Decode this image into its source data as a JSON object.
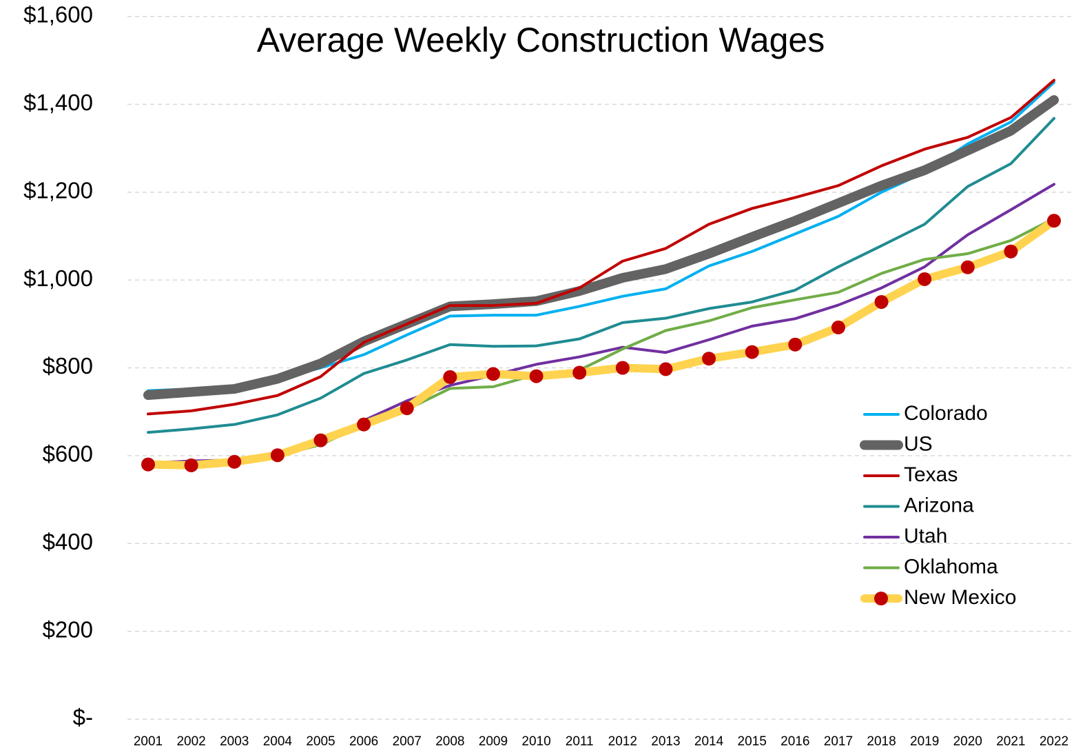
{
  "chart_data": {
    "type": "line",
    "title": "Average Weekly Construction Wages",
    "categories": [
      "2001",
      "2002",
      "2003",
      "2004",
      "2005",
      "2006",
      "2007",
      "2008",
      "2009",
      "2010",
      "2011",
      "2012",
      "2013",
      "2014",
      "2015",
      "2016",
      "2017",
      "2018",
      "2019",
      "2020",
      "2021",
      "2022"
    ],
    "ylim": [
      0,
      1600
    ],
    "yticks": [
      {
        "value": 0,
        "label": "$-"
      },
      {
        "value": 200,
        "label": "$200"
      },
      {
        "value": 400,
        "label": "$400"
      },
      {
        "value": 600,
        "label": "$600"
      },
      {
        "value": 800,
        "label": "$800"
      },
      {
        "value": 1000,
        "label": "$1,000"
      },
      {
        "value": 1200,
        "label": "$1,200"
      },
      {
        "value": 1400,
        "label": "$1,400"
      },
      {
        "value": 1600,
        "label": "$1,600"
      }
    ],
    "grid": true,
    "legend": "right",
    "series": [
      {
        "name": "Colorado",
        "color": "#00b0f0",
        "values": [
          748,
          752,
          757,
          775,
          800,
          830,
          875,
          918,
          920,
          920,
          940,
          963,
          980,
          1032,
          1065,
          1105,
          1145,
          1200,
          1245,
          1310,
          1360,
          1450
        ]
      },
      {
        "name": "US",
        "color": "#636363",
        "values": [
          738,
          745,
          752,
          775,
          810,
          860,
          900,
          940,
          945,
          952,
          975,
          1005,
          1025,
          1060,
          1098,
          1135,
          1175,
          1215,
          1250,
          1295,
          1340,
          1410
        ]
      },
      {
        "name": "Texas",
        "color": "#c00000",
        "values": [
          695,
          702,
          717,
          737,
          780,
          858,
          900,
          942,
          942,
          947,
          982,
          1043,
          1072,
          1127,
          1163,
          1188,
          1215,
          1260,
          1298,
          1325,
          1370,
          1455
        ]
      },
      {
        "name": "Arizona",
        "color": "#1f8c91",
        "values": [
          653,
          661,
          671,
          693,
          731,
          787,
          818,
          853,
          849,
          850,
          866,
          903,
          913,
          935,
          950,
          977,
          1030,
          1078,
          1127,
          1213,
          1265,
          1368
        ]
      },
      {
        "name": "Utah",
        "color": "#7030a0",
        "values": [
          583,
          588,
          590,
          600,
          628,
          680,
          725,
          760,
          783,
          808,
          825,
          847,
          835,
          864,
          895,
          912,
          943,
          982,
          1030,
          1103,
          1160,
          1218
        ]
      },
      {
        "name": "Oklahoma",
        "color": "#70ad47",
        "values": [
          583,
          580,
          590,
          600,
          625,
          670,
          705,
          753,
          757,
          785,
          795,
          843,
          885,
          907,
          937,
          955,
          972,
          1015,
          1047,
          1060,
          1090,
          1140
        ]
      },
      {
        "name": "New Mexico",
        "color": "#ffd34f",
        "marker_color": "#c00000",
        "values": [
          580,
          578,
          586,
          601,
          635,
          671,
          708,
          779,
          786,
          781,
          789,
          800,
          797,
          821,
          836,
          853,
          892,
          950,
          1002,
          1029,
          1065,
          1135
        ]
      }
    ]
  }
}
